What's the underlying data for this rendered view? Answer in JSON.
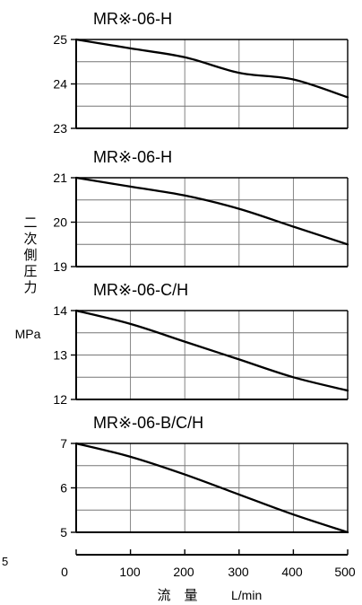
{
  "chart_data": [
    {
      "type": "line",
      "title": "MR※-06-H",
      "x": [
        0,
        100,
        200,
        300,
        400,
        500
      ],
      "series": [
        {
          "values": [
            25.0,
            24.8,
            24.6,
            24.25,
            24.1,
            23.7
          ]
        }
      ],
      "xlim": [
        0,
        500
      ],
      "ylim": [
        23,
        25
      ],
      "yticks": [
        "25",
        "24",
        "23"
      ],
      "grid": true
    },
    {
      "type": "line",
      "title": "MR※-06-H",
      "x": [
        0,
        100,
        200,
        300,
        400,
        500
      ],
      "series": [
        {
          "values": [
            21.0,
            20.8,
            20.6,
            20.3,
            19.9,
            19.5
          ]
        }
      ],
      "xlim": [
        0,
        500
      ],
      "ylim": [
        19,
        21
      ],
      "yticks": [
        "21",
        "20",
        "19"
      ],
      "grid": true
    },
    {
      "type": "line",
      "title": "MR※-06-C/H",
      "x": [
        0,
        100,
        200,
        300,
        400,
        500
      ],
      "series": [
        {
          "values": [
            14.0,
            13.7,
            13.3,
            12.9,
            12.5,
            12.2
          ]
        }
      ],
      "xlim": [
        0,
        500
      ],
      "ylim": [
        12,
        14
      ],
      "yticks": [
        "14",
        "13",
        "12"
      ],
      "grid": true
    },
    {
      "type": "line",
      "title": "MR※-06-B/C/H",
      "x": [
        0,
        100,
        200,
        300,
        400,
        500
      ],
      "series": [
        {
          "values": [
            7.0,
            6.7,
            6.3,
            5.85,
            5.4,
            5.0
          ]
        }
      ],
      "xlim": [
        0,
        500
      ],
      "ylim": [
        5,
        7
      ],
      "yticks": [
        "7",
        "6",
        "5"
      ],
      "grid": true
    }
  ],
  "shared_axis": {
    "ylabel_chars": [
      "二",
      "次",
      "側",
      "圧",
      "力"
    ],
    "yunit": "MPa",
    "xticks": [
      "0",
      "100",
      "200",
      "300",
      "400",
      "500"
    ],
    "xlabel_cn": "流　量",
    "xunit": "L/min",
    "stray_mark": "5"
  }
}
